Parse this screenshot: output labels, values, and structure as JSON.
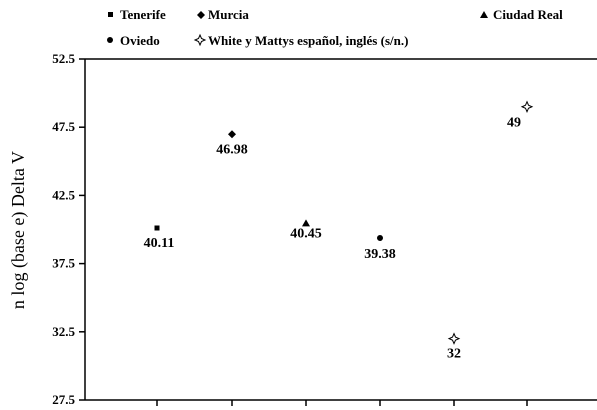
{
  "chart_data": {
    "type": "scatter",
    "ylabel": "n log (base e) Delta V",
    "ylim": [
      27.5,
      52.5
    ],
    "yticks": [
      "52.5",
      "47.5",
      "42.5",
      "37.5",
      "32.5",
      "27.5"
    ],
    "grid": false,
    "legend_position": "top",
    "series": [
      {
        "name": "Tenerife",
        "marker": "square",
        "points": [
          {
            "x": 1,
            "y": 40.11,
            "label": "40.11"
          }
        ]
      },
      {
        "name": "Murcia",
        "marker": "diamond",
        "points": [
          {
            "x": 2,
            "y": 46.98,
            "label": "46.98"
          }
        ]
      },
      {
        "name": "Ciudad Real",
        "marker": "triangle",
        "points": [
          {
            "x": 3,
            "y": 40.45,
            "label": "40.45"
          }
        ]
      },
      {
        "name": "Oviedo",
        "marker": "circle",
        "points": [
          {
            "x": 4,
            "y": 39.38,
            "label": "39.38"
          }
        ]
      },
      {
        "name": "White y Mattys español, inglés (s/n.)",
        "marker": "star-open",
        "points": [
          {
            "x": 5,
            "y": 32,
            "label": "32"
          },
          {
            "x": 6,
            "y": 49,
            "label": "49"
          }
        ]
      }
    ]
  }
}
